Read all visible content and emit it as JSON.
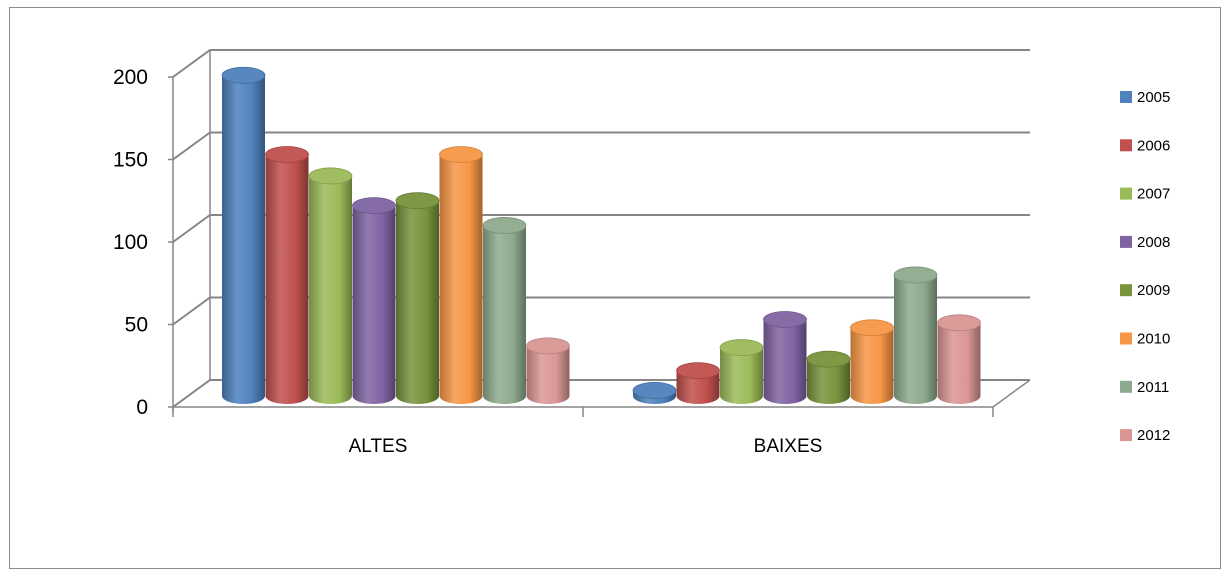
{
  "chart_data": {
    "type": "bar",
    "title": "",
    "xlabel": "",
    "ylabel": "",
    "categories": [
      "ALTES",
      "BAIXES"
    ],
    "ylim": [
      0,
      200
    ],
    "yticks": [
      "0",
      "50",
      "100",
      "150",
      "200"
    ],
    "grid": true,
    "legend_position": "right",
    "series": [
      {
        "name": "2005",
        "color": "#4f81bd",
        "values": [
          198,
          7
        ]
      },
      {
        "name": "2006",
        "color": "#c0504d",
        "values": [
          150,
          19
        ]
      },
      {
        "name": "2007",
        "color": "#9bbb59",
        "values": [
          137,
          33
        ]
      },
      {
        "name": "2008",
        "color": "#8064a2",
        "values": [
          119,
          50
        ]
      },
      {
        "name": "2009",
        "color": "#77933c",
        "values": [
          122,
          26
        ]
      },
      {
        "name": "2010",
        "color": "#f79646",
        "values": [
          150,
          45
        ]
      },
      {
        "name": "2011",
        "color": "#8eaa8e",
        "values": [
          107,
          77
        ]
      },
      {
        "name": "2012",
        "color": "#d99694",
        "values": [
          34,
          48
        ]
      }
    ]
  }
}
